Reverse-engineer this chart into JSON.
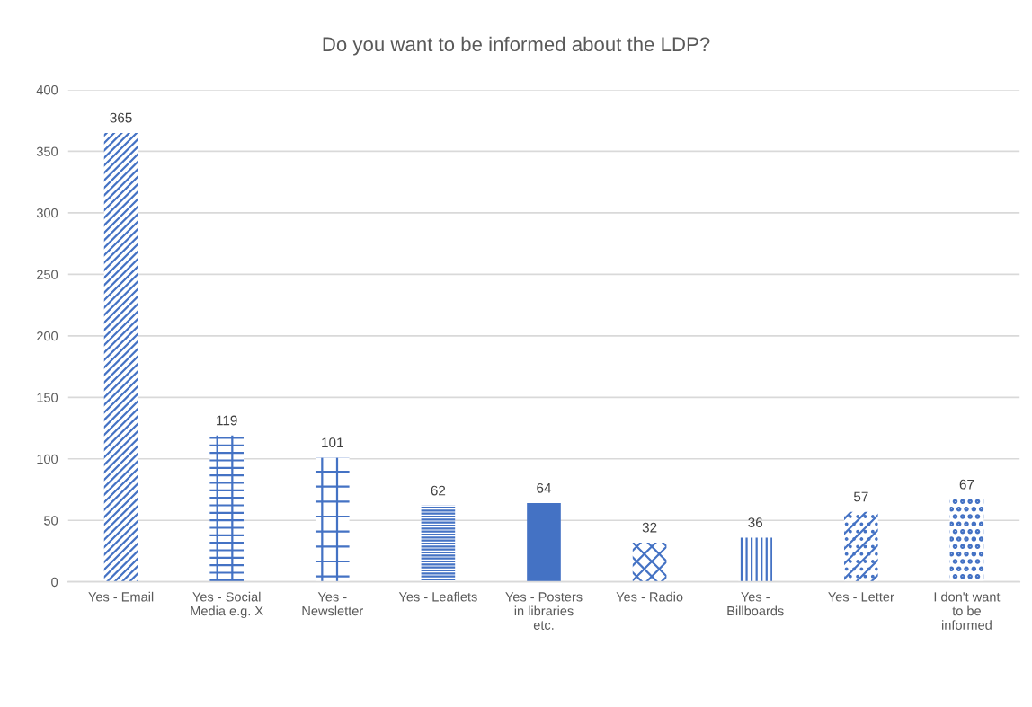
{
  "chart_data": {
    "type": "bar",
    "title": "Do you want to be informed about the LDP?",
    "categories": [
      "Yes - Email",
      "Yes - Social\nMedia e.g. X",
      "Yes -\nNewsletter",
      "Yes - Leaflets",
      "Yes - Posters\nin libraries\netc.",
      "Yes - Radio",
      "Yes -\nBillboards",
      "Yes - Letter",
      "I don't want\nto be\ninformed"
    ],
    "values": [
      365,
      119,
      101,
      62,
      64,
      32,
      36,
      57,
      67
    ],
    "color": "#4472c4",
    "ylim": [
      0,
      400
    ],
    "yticks": [
      0,
      50,
      100,
      150,
      200,
      250,
      300,
      350,
      400
    ],
    "grid": "y",
    "data_labels": true
  }
}
